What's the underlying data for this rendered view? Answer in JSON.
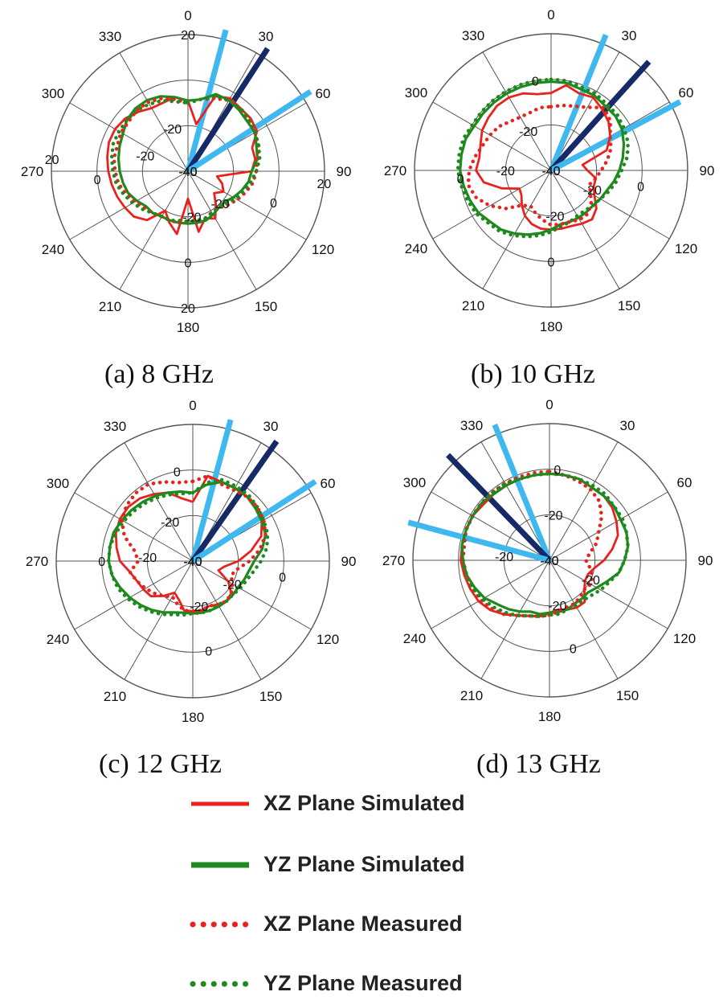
{
  "figure": {
    "panels": [
      {
        "id": "a",
        "caption": "(a) 8 GHz"
      },
      {
        "id": "b",
        "caption": "(b) 10 GHz"
      },
      {
        "id": "c",
        "caption": "(c) 12 GHz"
      },
      {
        "id": "d",
        "caption": "(d) 13 GHz"
      }
    ],
    "legend": [
      {
        "label": "XZ Plane Simulated",
        "color": "#e8231e",
        "style": "solid"
      },
      {
        "label": "YZ Plane Simulated",
        "color": "#1e8a1e",
        "style": "solid"
      },
      {
        "label": "XZ Plane Measured",
        "color": "#e8231e",
        "style": "dotted"
      },
      {
        "label": "YZ Plane Measured",
        "color": "#1e8a1e",
        "style": "dotted"
      }
    ],
    "colors": {
      "beam_light": "#3fb8f0",
      "beam_dark": "#152a66",
      "grid": "#555555"
    }
  },
  "chart_data": [
    {
      "type": "polar",
      "title": "(a) 8 GHz",
      "angle_ticks": [
        "0",
        "30",
        "60",
        "90",
        "120",
        "150",
        "180",
        "210",
        "240",
        "270",
        "300",
        "330"
      ],
      "radial_range_db": [
        -40,
        20
      ],
      "radial_labels": [
        {
          "text": "20",
          "angle_deg": 0,
          "db": 20
        },
        {
          "text": "-20",
          "angle_deg": 340,
          "db": -20
        },
        {
          "text": "-20",
          "angle_deg": 290,
          "db": -20
        },
        {
          "text": "20",
          "angle_deg": 275,
          "db": 20
        },
        {
          "text": "0",
          "angle_deg": 265,
          "db": 0
        },
        {
          "text": "-40",
          "angle_deg": 270,
          "db": -40
        },
        {
          "text": "-40",
          "angle_deg": 100,
          "db": -40
        },
        {
          "text": "-40",
          "angle_deg": 185,
          "db": -40
        },
        {
          "text": "-20",
          "angle_deg": 135,
          "db": -20
        },
        {
          "text": "-20",
          "angle_deg": 175,
          "db": -20
        },
        {
          "text": "0",
          "angle_deg": 110,
          "db": 0
        },
        {
          "text": "20",
          "angle_deg": 95,
          "db": 20
        },
        {
          "text": "0",
          "angle_deg": 180,
          "db": 0
        },
        {
          "text": "20",
          "angle_deg": 180,
          "db": 20
        }
      ],
      "beams": [
        {
          "angle_deg": 15,
          "color": "light"
        },
        {
          "angle_deg": 33,
          "color": "dark"
        },
        {
          "angle_deg": 57,
          "color": "light"
        }
      ],
      "series": [
        {
          "name": "XZ Plane Simulated",
          "r_db": [
            -9,
            -19,
            -5,
            -3,
            -4,
            -4,
            -5,
            -10,
            -10,
            -12,
            -27,
            -24,
            -22,
            -25,
            -21,
            -16,
            -18,
            -13,
            -28,
            -12,
            -16,
            -20,
            -12,
            -9,
            -8,
            -7,
            -6,
            -5,
            -4,
            -3,
            -3,
            -4,
            -6,
            -8,
            -8,
            -7
          ]
        },
        {
          "name": "YZ Plane Simulated",
          "r_db": [
            -9,
            -8,
            -4,
            -4,
            -5,
            -6,
            -6,
            -8,
            -9,
            -12,
            -13,
            -15,
            -17,
            -19,
            -19,
            -18,
            -17,
            -17,
            -17,
            -17,
            -17,
            -17,
            -16,
            -16,
            -14,
            -12,
            -11,
            -10,
            -9,
            -8,
            -7,
            -5,
            -4,
            -4,
            -5,
            -7
          ]
        },
        {
          "name": "XZ Plane Measured",
          "r_db": [
            -10,
            -8,
            -6,
            -4,
            -4,
            -5,
            -6,
            -7,
            -9,
            -10,
            -11,
            -13,
            -15,
            -17,
            -19,
            -19,
            -18,
            -18,
            -18,
            -17,
            -17,
            -17,
            -16,
            -15,
            -13,
            -11,
            -9,
            -8,
            -7,
            -7,
            -6,
            -6,
            -5,
            -5,
            -6,
            -8
          ]
        },
        {
          "name": "YZ Plane Measured",
          "r_db": [
            -10,
            -8,
            -5,
            -4,
            -4,
            -5,
            -6,
            -7,
            -8,
            -10,
            -12,
            -14,
            -16,
            -18,
            -19,
            -19,
            -18,
            -18,
            -18,
            -18,
            -17,
            -17,
            -16,
            -14,
            -12,
            -10,
            -8,
            -7,
            -6,
            -5,
            -5,
            -5,
            -5,
            -6,
            -7,
            -9
          ]
        }
      ]
    },
    {
      "type": "polar",
      "title": "(b) 10 GHz",
      "angle_ticks": [
        "0",
        "30",
        "60",
        "90",
        "120",
        "150",
        "180",
        "210",
        "240",
        "270",
        "300",
        "330"
      ],
      "radial_range_db": [
        -40,
        20
      ],
      "radial_labels": [
        {
          "text": "0",
          "angle_deg": 350,
          "db": 0
        },
        {
          "text": "-20",
          "angle_deg": 330,
          "db": -20
        },
        {
          "text": "-20",
          "angle_deg": 270,
          "db": -20
        },
        {
          "text": "0",
          "angle_deg": 265,
          "db": 0
        },
        {
          "text": "-40",
          "angle_deg": 270,
          "db": -40
        },
        {
          "text": "-40",
          "angle_deg": 185,
          "db": -40
        },
        {
          "text": "-20",
          "angle_deg": 175,
          "db": -20
        },
        {
          "text": "-20",
          "angle_deg": 115,
          "db": -20
        },
        {
          "text": "0",
          "angle_deg": 100,
          "db": 0
        },
        {
          "text": "0",
          "angle_deg": 180,
          "db": 0
        }
      ],
      "beams": [
        {
          "angle_deg": 22,
          "color": "light"
        },
        {
          "angle_deg": 42,
          "color": "dark"
        },
        {
          "angle_deg": 62,
          "color": "light"
        }
      ],
      "series": [
        {
          "name": "XZ Plane Simulated",
          "r_db": [
            -6,
            -2,
            -4,
            -3,
            -5,
            -7,
            -10,
            -14,
            -26,
            -24,
            -20,
            -20,
            -18,
            -14,
            -12,
            -13,
            -14,
            -14,
            -14,
            -14,
            -15,
            -17,
            -20,
            -23,
            -24,
            -17,
            -10,
            -7,
            -8,
            -7,
            -5,
            -4,
            -3,
            -3,
            -4,
            -6
          ]
        },
        {
          "name": "YZ Plane Simulated",
          "r_db": [
            -1,
            -1,
            -2,
            -2,
            -3,
            -3,
            -4,
            -6,
            -8,
            -10,
            -12,
            -14,
            -15,
            -16,
            -16,
            -16,
            -16,
            -16,
            -14,
            -12,
            -10,
            -8,
            -6,
            -5,
            -3,
            -2,
            -1,
            0,
            0,
            0,
            -1,
            -1,
            -1,
            -1,
            -1,
            -1
          ]
        },
        {
          "name": "XZ Plane Measured",
          "r_db": [
            -12,
            -11,
            -10,
            -8,
            -4,
            -6,
            -10,
            -12,
            -15,
            -18,
            -20,
            -22,
            -20,
            -17,
            -15,
            -15,
            -16,
            -16,
            -16,
            -18,
            -20,
            -22,
            -20,
            -14,
            -9,
            -5,
            -3,
            -4,
            -6,
            -8,
            -9,
            -10,
            -12,
            -13,
            -13,
            -12
          ]
        },
        {
          "name": "YZ Plane Measured",
          "r_db": [
            0,
            0,
            -1,
            -1,
            -2,
            -2,
            -3,
            -4,
            -6,
            -9,
            -11,
            -13,
            -15,
            -16,
            -17,
            -17,
            -16,
            -15,
            -13,
            -11,
            -9,
            -7,
            -5,
            -4,
            -2,
            -1,
            0,
            1,
            1,
            1,
            0,
            0,
            0,
            0,
            0,
            0
          ]
        }
      ]
    },
    {
      "type": "polar",
      "title": "(c) 12 GHz",
      "angle_ticks": [
        "0",
        "30",
        "60",
        "90",
        "120",
        "150",
        "180",
        "210",
        "240",
        "270",
        "300",
        "330"
      ],
      "radial_range_db": [
        -40,
        20
      ],
      "radial_labels": [
        {
          "text": "0",
          "angle_deg": 350,
          "db": 0
        },
        {
          "text": "-20",
          "angle_deg": 330,
          "db": -20
        },
        {
          "text": "-20",
          "angle_deg": 275,
          "db": -20
        },
        {
          "text": "0",
          "angle_deg": 270,
          "db": 0
        },
        {
          "text": "-40",
          "angle_deg": 270,
          "db": -40
        },
        {
          "text": "-40",
          "angle_deg": 100,
          "db": -40
        },
        {
          "text": "-40",
          "angle_deg": 185,
          "db": -40
        },
        {
          "text": "-20",
          "angle_deg": 120,
          "db": -20
        },
        {
          "text": "-20",
          "angle_deg": 172,
          "db": -20
        },
        {
          "text": "0",
          "angle_deg": 100,
          "db": 0
        },
        {
          "text": "0",
          "angle_deg": 170,
          "db": 0
        }
      ],
      "beams": [
        {
          "angle_deg": 15,
          "color": "light"
        },
        {
          "angle_deg": 35,
          "color": "dark"
        },
        {
          "angle_deg": 57,
          "color": "light"
        }
      ],
      "series": [
        {
          "name": "XZ Plane Simulated",
          "r_db": [
            -14,
            -2,
            -3,
            -3,
            -3,
            -4,
            -5,
            -8,
            -14,
            -20,
            -26,
            -28,
            -22,
            -18,
            -17,
            -18,
            -19,
            -18,
            -18,
            -18,
            -22,
            -24,
            -20,
            -16,
            -15,
            -14,
            -12,
            -8,
            -6,
            -4,
            -3,
            -3,
            -4,
            -6,
            -8,
            -12
          ]
        },
        {
          "name": "YZ Plane Simulated",
          "r_db": [
            -10,
            -6,
            -3,
            -3,
            -3,
            -4,
            -5,
            -6,
            -9,
            -13,
            -15,
            -16,
            -17,
            -17,
            -17,
            -17,
            -17,
            -17,
            -17,
            -17,
            -16,
            -14,
            -12,
            -10,
            -8,
            -6,
            -4,
            -3,
            -3,
            -3,
            -4,
            -5,
            -6,
            -7,
            -8,
            -9
          ]
        },
        {
          "name": "XZ Plane Measured",
          "r_db": [
            -5,
            -2,
            -4,
            -4,
            -3,
            -3,
            -4,
            -6,
            -10,
            -15,
            -20,
            -22,
            -20,
            -18,
            -17,
            -18,
            -19,
            -18,
            -18,
            -18,
            -20,
            -22,
            -20,
            -18,
            -16,
            -14,
            -12,
            -16,
            -14,
            -8,
            -4,
            -2,
            -1,
            -1,
            -3,
            -5
          ]
        },
        {
          "name": "YZ Plane Measured",
          "r_db": [
            -10,
            -5,
            -2,
            -2,
            -2,
            -3,
            -4,
            -5,
            -7,
            -10,
            -13,
            -15,
            -16,
            -17,
            -17,
            -18,
            -17,
            -17,
            -17,
            -16,
            -15,
            -13,
            -11,
            -9,
            -7,
            -5,
            -4,
            -3,
            -3,
            -4,
            -5,
            -6,
            -7,
            -8,
            -9,
            -10
          ]
        }
      ]
    },
    {
      "type": "polar",
      "title": "(d) 13 GHz",
      "angle_ticks": [
        "0",
        "30",
        "60",
        "90",
        "120",
        "150",
        "180",
        "210",
        "240",
        "270",
        "300",
        "330"
      ],
      "radial_range_db": [
        -40,
        20
      ],
      "radial_labels": [
        {
          "text": "-20",
          "angle_deg": 5,
          "db": -20
        },
        {
          "text": "-20",
          "angle_deg": 275,
          "db": -20
        },
        {
          "text": "-40",
          "angle_deg": 270,
          "db": -40
        },
        {
          "text": "-40",
          "angle_deg": 100,
          "db": -40
        },
        {
          "text": "-20",
          "angle_deg": 115,
          "db": -20
        },
        {
          "text": "-20",
          "angle_deg": 170,
          "db": -20
        },
        {
          "text": "0",
          "angle_deg": 165,
          "db": 0
        },
        {
          "text": "0",
          "angle_deg": 5,
          "db": 0
        }
      ],
      "beams": [
        {
          "angle_deg": 338,
          "color": "light"
        },
        {
          "angle_deg": 316,
          "color": "dark"
        },
        {
          "angle_deg": 285,
          "color": "light"
        }
      ],
      "series": [
        {
          "name": "XZ Plane Simulated",
          "r_db": [
            -2,
            -2,
            -2,
            -3,
            -3,
            -4,
            -6,
            -8,
            -12,
            -16,
            -20,
            -22,
            -22,
            -20,
            -16,
            -16,
            -17,
            -18,
            -17,
            -15,
            -14,
            -12,
            -9,
            -6,
            -4,
            -3,
            -2,
            -1,
            -1,
            -1,
            -1,
            -2,
            -2,
            -2,
            -2,
            -2
          ]
        },
        {
          "name": "YZ Plane Simulated",
          "r_db": [
            -2,
            -2,
            -2,
            -3,
            -3,
            -3,
            -4,
            -4,
            -5,
            -7,
            -9,
            -13,
            -16,
            -18,
            -18,
            -18,
            -17,
            -17,
            -17,
            -16,
            -16,
            -14,
            -12,
            -10,
            -7,
            -5,
            -3,
            -2,
            -1,
            -1,
            -1,
            -1,
            -2,
            -2,
            -2,
            -2
          ]
        },
        {
          "name": "XZ Plane Measured",
          "r_db": [
            -1,
            -2,
            -3,
            -4,
            -6,
            -10,
            -15,
            -18,
            -22,
            -24,
            -22,
            -20,
            -19,
            -20,
            -19,
            -18,
            -18,
            -17,
            -16,
            -15,
            -14,
            -12,
            -9,
            -7,
            -5,
            -4,
            -3,
            -2,
            -2,
            -1,
            -1,
            -1,
            -1,
            -1,
            -1,
            -1
          ]
        },
        {
          "name": "YZ Plane Measured",
          "r_db": [
            -2,
            -2,
            -2,
            -2,
            -2,
            -3,
            -3,
            -4,
            -5,
            -7,
            -9,
            -12,
            -14,
            -16,
            -17,
            -17,
            -17,
            -16,
            -16,
            -15,
            -14,
            -12,
            -10,
            -8,
            -6,
            -4,
            -3,
            -2,
            -1,
            -1,
            -1,
            -1,
            -1,
            -1,
            -2,
            -2
          ]
        }
      ]
    }
  ]
}
